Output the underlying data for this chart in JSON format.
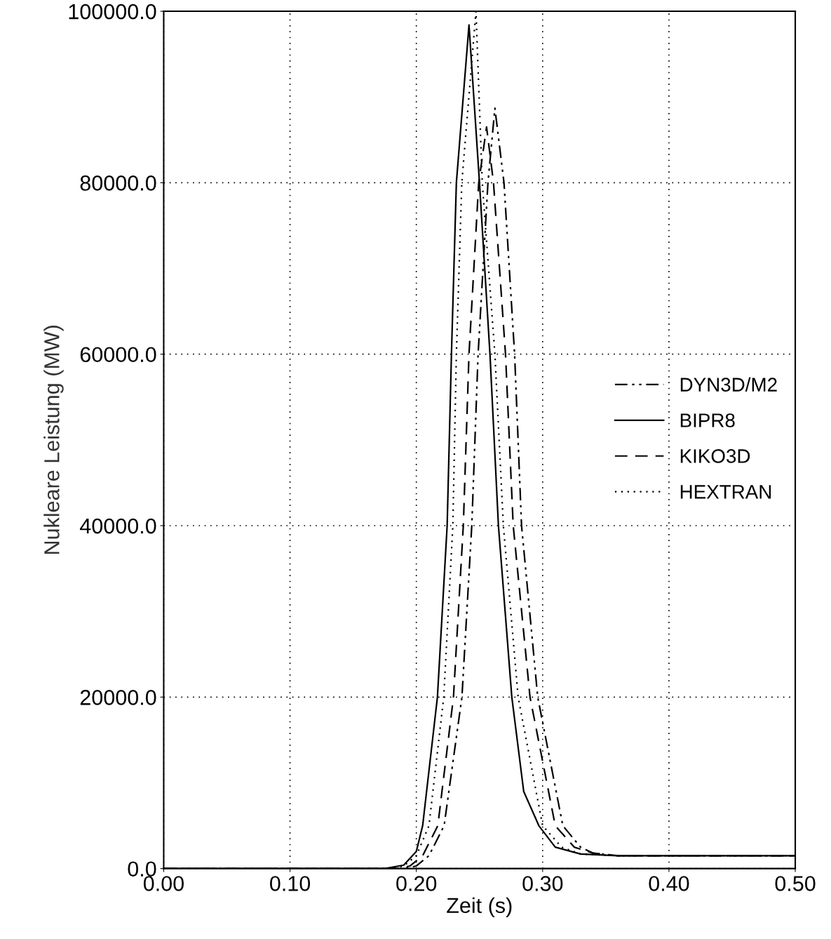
{
  "chart_data": {
    "type": "line",
    "xlabel": "Zeit (s)",
    "ylabel": "Nukleare Leistung (MW)",
    "xlim": [
      0,
      0.5
    ],
    "ylim": [
      0,
      100000
    ],
    "xticks": [
      {
        "value": 0,
        "label": "0.00"
      },
      {
        "value": 0.1,
        "label": "0.10"
      },
      {
        "value": 0.2,
        "label": "0.20"
      },
      {
        "value": 0.3,
        "label": "0.30"
      },
      {
        "value": 0.4,
        "label": "0.40"
      },
      {
        "value": 0.5,
        "label": "0.50"
      }
    ],
    "yticks": [
      {
        "value": 0,
        "label": "0.0"
      },
      {
        "value": 20000,
        "label": "20000.0"
      },
      {
        "value": 40000,
        "label": "40000.0"
      },
      {
        "value": 60000,
        "label": "60000.0"
      },
      {
        "value": 80000,
        "label": "80000.0"
      },
      {
        "value": 100000,
        "label": "100000.0"
      }
    ],
    "grid": true,
    "legend": "right",
    "marker": "none",
    "series": [
      {
        "name": "DYN3D/M2",
        "color": "#000000",
        "line_style": "dashdot",
        "x": [
          0,
          0.19,
          0.2,
          0.21,
          0.222,
          0.2361,
          0.2439,
          0.2489,
          0.2567,
          0.2622,
          0.2694,
          0.2778,
          0.2833,
          0.2961,
          0.316,
          0.33,
          0.34,
          0.36,
          0.5
        ],
        "values": [
          0,
          0,
          300,
          1500,
          5000,
          20000,
          40000,
          60000,
          80000,
          88700,
          80000,
          60000,
          40000,
          20000,
          5000,
          2500,
          1800,
          1500,
          1500
        ]
      },
      {
        "name": "BIPR8",
        "color": "#000000",
        "line_style": "solid",
        "x": [
          0,
          0.175,
          0.19,
          0.2,
          0.205,
          0.2167,
          0.2244,
          0.2278,
          0.2317,
          0.2417,
          0.25,
          0.2583,
          0.265,
          0.2756,
          0.285,
          0.297,
          0.31,
          0.33,
          0.36,
          0.5
        ],
        "values": [
          0,
          0,
          400,
          2000,
          5000,
          20000,
          40000,
          60000,
          80000,
          98400,
          80000,
          60000,
          40000,
          20000,
          9000,
          5000,
          2500,
          1700,
          1500,
          1500
        ]
      },
      {
        "name": "KIKO3D",
        "color": "#000000",
        "line_style": "dashed",
        "x": [
          0,
          0.185,
          0.195,
          0.205,
          0.217,
          0.2294,
          0.2372,
          0.2417,
          0.2494,
          0.2556,
          0.2611,
          0.2706,
          0.2767,
          0.29,
          0.31,
          0.325,
          0.34,
          0.36,
          0.5
        ],
        "values": [
          0,
          0,
          300,
          1500,
          5000,
          20000,
          40000,
          60000,
          80000,
          86500,
          80000,
          60000,
          40000,
          20000,
          5000,
          2500,
          1800,
          1500,
          1500
        ]
      },
      {
        "name": "HEXTRAN",
        "color": "#000000",
        "line_style": "dotted",
        "x": [
          0,
          0.18,
          0.19,
          0.2,
          0.21,
          0.2217,
          0.2289,
          0.2317,
          0.236,
          0.2472,
          0.2522,
          0.2622,
          0.2689,
          0.2806,
          0.3,
          0.315,
          0.33,
          0.36,
          0.5
        ],
        "values": [
          0,
          0,
          300,
          1500,
          5000,
          20000,
          40000,
          60000,
          80000,
          100000,
          80000,
          60000,
          40000,
          20000,
          5000,
          2500,
          1700,
          1500,
          1500
        ]
      }
    ]
  }
}
